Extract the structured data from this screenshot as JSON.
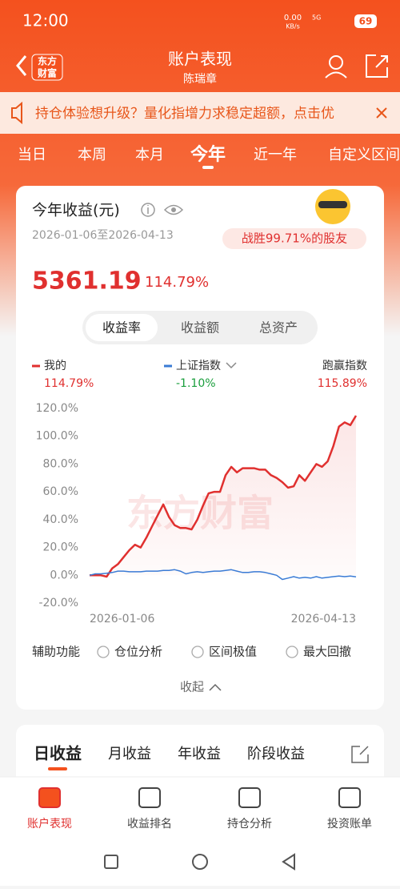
{
  "status_bar": {
    "time": "12:00",
    "speed": "0.00",
    "speed_unit": "KB/s",
    "network": "5G",
    "battery": "69"
  },
  "header": {
    "logo": [
      "东方",
      "财富"
    ],
    "title": "账户表现",
    "subtitle": "陈瑞章"
  },
  "banner": "持仓体验想升级？量化指增力求稳定超额，点击优",
  "period_tabs": [
    "当日",
    "本周",
    "本月",
    "今年",
    "近一年",
    "自定义区间"
  ],
  "card": {
    "title": "今年收益(元)",
    "date_range": "2026-01-06至2026-04-13",
    "badge": "战胜99.71%的股友",
    "amount": "5361.19",
    "rate": "114.79%"
  },
  "toggle": [
    "收益率",
    "收益额",
    "总资产"
  ],
  "legend": {
    "latest": [
      "114.79%",
      "-1.10%"
    ],
    "outperform": {
      "name": "跑赢指数",
      "value": "115.89%"
    }
  },
  "chart_data": {
    "type": "line",
    "watermark": "东方财富",
    "categories": [
      "2026-01-06",
      null,
      null,
      null,
      null,
      null,
      null,
      null,
      null,
      null,
      null,
      null,
      null,
      null,
      null,
      null,
      null,
      null,
      null,
      null,
      null,
      null,
      null,
      null,
      null,
      null,
      null,
      null,
      null,
      null,
      null,
      null,
      null,
      null,
      null,
      null,
      null,
      null,
      null,
      null,
      null,
      null,
      null,
      null,
      null,
      null,
      null,
      "2026-04-13"
    ],
    "series": [
      {
        "name": "我的",
        "color": "#e0302f",
        "values": [
          0,
          0,
          0,
          -1,
          5,
          8,
          13,
          18,
          22,
          20,
          27,
          35,
          43,
          51,
          42,
          36,
          34,
          34,
          33,
          40,
          50,
          59,
          60,
          60,
          72,
          78,
          74,
          77,
          77,
          77,
          76,
          76,
          72,
          70,
          67,
          63,
          64,
          72,
          68,
          74,
          80,
          78,
          82,
          93,
          107,
          110,
          108,
          114.79
        ]
      },
      {
        "name": "上证指数",
        "color": "#3a7bd5",
        "values": [
          0,
          1,
          1,
          1.5,
          2,
          3,
          3,
          2.5,
          2.5,
          2.5,
          3,
          3,
          3,
          3.5,
          3.5,
          4,
          3,
          1,
          2,
          2.5,
          2,
          2.5,
          3,
          3,
          3.5,
          4,
          3,
          2,
          2,
          2.5,
          2.5,
          2,
          1,
          0,
          -3,
          -2,
          -1,
          -2,
          -1.5,
          -2,
          -1,
          -2,
          -1.5,
          -1,
          -0.5,
          -1,
          -0.5,
          -1.1
        ]
      }
    ],
    "ylim": [
      -20,
      120
    ],
    "yticks": [
      {
        "value": 120,
        "label": "120.0%"
      },
      {
        "value": 100,
        "label": "100.0%"
      },
      {
        "value": 80,
        "label": "80.0%"
      },
      {
        "value": 60,
        "label": "60.0%"
      },
      {
        "value": 40,
        "label": "40.0%"
      },
      {
        "value": 20,
        "label": "20.0%"
      },
      {
        "value": 0,
        "label": "0.0%"
      },
      {
        "value": -20,
        "label": "-20.0%"
      }
    ],
    "grid": false
  },
  "options": {
    "label": "辅助功能",
    "items": [
      "仓位分析",
      "区间极值",
      "最大回撤"
    ],
    "collapse": "收起"
  },
  "bottom_tabs": [
    "日收益",
    "月收益",
    "年收益",
    "阶段收益"
  ],
  "nav": [
    "账户表现",
    "收益排名",
    "持仓分析",
    "投资账单"
  ]
}
